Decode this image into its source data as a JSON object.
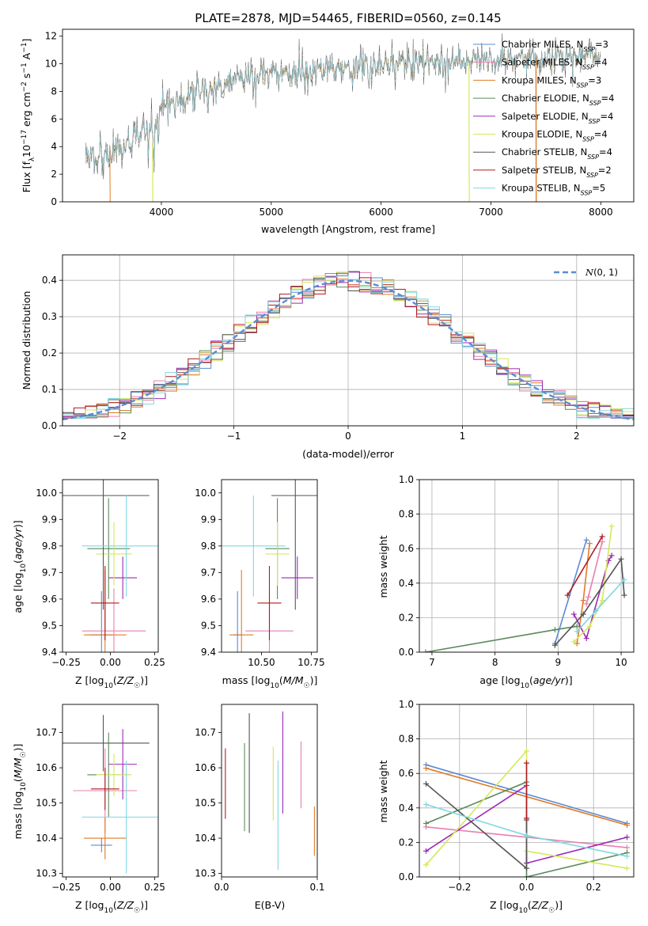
{
  "figure_title": "PLATE=2878, MJD=54465, FIBERID=0560, z=0.145",
  "colors": {
    "Chabrier MILES": "#5b8bd4",
    "Salpeter MILES": "#e87fb0",
    "Kroupa MILES": "#e07b28",
    "Chabrier ELODIE": "#5a8a5a",
    "Salpeter ELODIE": "#9b2bb5",
    "Kroupa ELODIE": "#d6e85a",
    "Chabrier STELIB": "#555555",
    "Salpeter STELIB": "#b01c1c",
    "Kroupa STELIB": "#7fd8e0"
  },
  "chart_data": [
    {
      "id": "spectrum",
      "type": "line",
      "xlabel": "wavelength [Angstrom, rest frame]",
      "ylabel": "Flux [f_λ 10^-17 erg cm^-2 s^-1 A^-1]",
      "xlim": [
        3100,
        8300
      ],
      "ylim": [
        0,
        12.5
      ],
      "xticks": [
        4000,
        5000,
        6000,
        7000,
        8000
      ],
      "yticks": [
        0,
        2,
        4,
        6,
        8,
        10,
        12
      ],
      "legend_position": "right",
      "legend": [
        {
          "model": "Chabrier MILES",
          "nssp": "3"
        },
        {
          "model": "Salpeter MILES",
          "nssp": "4"
        },
        {
          "model": "Kroupa MILES",
          "nssp": "3"
        },
        {
          "model": "Chabrier ELODIE",
          "nssp": "4"
        },
        {
          "model": "Salpeter ELODIE",
          "nssp": "4"
        },
        {
          "model": "Kroupa ELODIE",
          "nssp": "4"
        },
        {
          "model": "Chabrier STELIB",
          "nssp": "4"
        },
        {
          "model": "Salpeter STELIB",
          "nssp": "2"
        },
        {
          "model": "Kroupa STELIB",
          "nssp": "5"
        }
      ],
      "continuum": {
        "x": [
          3300,
          3500,
          3700,
          3900,
          4000,
          4300,
          4600,
          5000,
          5400,
          5800,
          6200,
          6600,
          7000,
          7400,
          7800,
          8000
        ],
        "y": [
          3.5,
          3.4,
          4.2,
          5.0,
          6.8,
          7.8,
          8.6,
          9.3,
          9.6,
          9.8,
          10.0,
          10.2,
          10.3,
          10.5,
          10.6,
          10.6
        ]
      }
    },
    {
      "id": "residuals",
      "type": "bar",
      "xlabel": "(data-model)/error",
      "ylabel": "Normed distribution",
      "xlim": [
        -2.5,
        2.5
      ],
      "ylim": [
        0,
        0.47
      ],
      "xticks": [
        -2,
        -1,
        0,
        1,
        2
      ],
      "yticks": [
        0.0,
        0.1,
        0.2,
        0.3,
        0.4
      ],
      "grid": true,
      "legend_position": "top-right",
      "reference_label": "N(0,1)"
    },
    {
      "id": "age_vs_Z",
      "type": "scatter",
      "xlabel": "Z [log10(Z/Z☉)]",
      "ylabel": "age [log10(age/yr)]",
      "xlim": [
        -0.27,
        0.27
      ],
      "ylim": [
        9.4,
        10.05
      ],
      "xticks": [
        -0.25,
        0.0,
        0.25
      ],
      "yticks": [
        9.4,
        9.5,
        9.6,
        9.7,
        9.8,
        9.9,
        10.0
      ],
      "points": [
        {
          "model": "Chabrier MILES",
          "x": -0.05,
          "xerr": 0.06,
          "y": 9.465,
          "yerr": 0.165
        },
        {
          "model": "Salpeter MILES",
          "x": 0.02,
          "xerr": 0.18,
          "y": 9.48,
          "yerr": 0.16
        },
        {
          "model": "Kroupa MILES",
          "x": -0.03,
          "xerr": 0.12,
          "y": 9.465,
          "yerr": 0.245
        },
        {
          "model": "Chabrier ELODIE",
          "x": -0.01,
          "xerr": 0.12,
          "y": 9.79,
          "yerr": 0.19
        },
        {
          "model": "Salpeter ELODIE",
          "x": 0.07,
          "xerr": 0.08,
          "y": 9.68,
          "yerr": 0.08
        },
        {
          "model": "Kroupa ELODIE",
          "x": 0.02,
          "xerr": 0.1,
          "y": 9.77,
          "yerr": 0.12
        },
        {
          "model": "Chabrier STELIB",
          "x": -0.04,
          "xerr": 0.26,
          "y": 9.99,
          "yerr": 0.43
        },
        {
          "model": "Salpeter STELIB",
          "x": -0.03,
          "xerr": 0.08,
          "y": 9.585,
          "yerr": 0.14
        },
        {
          "model": "Kroupa STELIB",
          "x": 0.09,
          "xerr": 0.25,
          "y": 9.8,
          "yerr": 0.19
        }
      ]
    },
    {
      "id": "age_vs_mass",
      "type": "scatter",
      "xlabel": "mass [log10(M/M☉)]",
      "ylabel": "",
      "xlim": [
        10.3,
        10.78
      ],
      "ylim": [
        9.4,
        10.05
      ],
      "xticks": [
        10.5,
        10.75
      ],
      "xticklabels": [
        "10.50",
        "10.75"
      ],
      "yticks": [
        9.4,
        9.5,
        9.6,
        9.7,
        9.8,
        9.9,
        10.0
      ],
      "points": [
        {
          "model": "Chabrier MILES",
          "x": 10.38,
          "xerr": 0.02,
          "y": 9.465,
          "yerr": 0.165
        },
        {
          "model": "Salpeter MILES",
          "x": 10.54,
          "xerr": 0.12,
          "y": 9.48,
          "yerr": 0.16
        },
        {
          "model": "Kroupa MILES",
          "x": 10.4,
          "xerr": 0.06,
          "y": 9.465,
          "yerr": 0.245
        },
        {
          "model": "Chabrier ELODIE",
          "x": 10.58,
          "xerr": 0.06,
          "y": 9.79,
          "yerr": 0.19
        },
        {
          "model": "Salpeter ELODIE",
          "x": 10.68,
          "xerr": 0.08,
          "y": 9.68,
          "yerr": 0.08
        },
        {
          "model": "Kroupa ELODIE",
          "x": 10.58,
          "xerr": 0.06,
          "y": 9.77,
          "yerr": 0.12
        },
        {
          "model": "Chabrier STELIB",
          "x": 10.67,
          "xerr": 0.12,
          "y": 9.99,
          "yerr": 0.43
        },
        {
          "model": "Salpeter STELIB",
          "x": 10.54,
          "xerr": 0.06,
          "y": 9.585,
          "yerr": 0.14
        },
        {
          "model": "Kroupa STELIB",
          "x": 10.46,
          "xerr": 0.16,
          "y": 9.8,
          "yerr": 0.19
        }
      ]
    },
    {
      "id": "mass_vs_Z",
      "type": "scatter",
      "xlabel": "Z [log10(Z/Z☉)]",
      "ylabel": "mass [log10(M/M☉)]",
      "xlim": [
        -0.27,
        0.27
      ],
      "ylim": [
        10.29,
        10.78
      ],
      "xticks": [
        -0.25,
        0.0,
        0.25
      ],
      "yticks": [
        10.3,
        10.4,
        10.5,
        10.6,
        10.7
      ],
      "points": [
        {
          "model": "Chabrier MILES",
          "x": -0.05,
          "xerr": 0.06,
          "y": 10.38,
          "yerr": 0.02
        },
        {
          "model": "Salpeter MILES",
          "x": -0.03,
          "xerr": 0.18,
          "y": 10.535,
          "yerr": 0.12
        },
        {
          "model": "Kroupa MILES",
          "x": -0.03,
          "xerr": 0.12,
          "y": 10.4,
          "yerr": 0.06
        },
        {
          "model": "Chabrier ELODIE",
          "x": -0.01,
          "xerr": 0.12,
          "y": 10.58,
          "yerr": 0.12
        },
        {
          "model": "Salpeter ELODIE",
          "x": 0.07,
          "xerr": 0.08,
          "y": 10.61,
          "yerr": 0.1
        },
        {
          "model": "Kroupa ELODIE",
          "x": 0.02,
          "xerr": 0.1,
          "y": 10.58,
          "yerr": 0.06
        },
        {
          "model": "Chabrier STELIB",
          "x": -0.04,
          "xerr": 0.26,
          "y": 10.67,
          "yerr": 0.08
        },
        {
          "model": "Salpeter STELIB",
          "x": -0.03,
          "xerr": 0.08,
          "y": 10.54,
          "yerr": 0.06
        },
        {
          "model": "Kroupa STELIB",
          "x": 0.09,
          "xerr": 0.25,
          "y": 10.46,
          "yerr": 0.16
        }
      ]
    },
    {
      "id": "mass_vs_ebv",
      "type": "scatter",
      "xlabel": "E(B-V)",
      "ylabel": "",
      "xlim": [
        0.0,
        0.1
      ],
      "ylim": [
        10.29,
        10.78
      ],
      "xticks": [
        0.0,
        0.1
      ],
      "xticklabels": [
        "0.0",
        "0.1"
      ],
      "yticks": [
        10.3,
        10.4,
        10.5,
        10.6,
        10.7
      ],
      "points": [
        {
          "model": "Salpeter STELIB",
          "x": 0.004,
          "y": 10.555,
          "yerr": 0.1
        },
        {
          "model": "Chabrier ELODIE",
          "x": 0.024,
          "y": 10.545,
          "yerr": 0.125
        },
        {
          "model": "Chabrier STELIB",
          "x": 0.029,
          "y": 10.585,
          "yerr": 0.17
        },
        {
          "model": "Kroupa ELODIE",
          "x": 0.054,
          "y": 10.555,
          "yerr": 0.105
        },
        {
          "model": "Kroupa STELIB",
          "x": 0.059,
          "y": 10.465,
          "yerr": 0.155
        },
        {
          "model": "Salpeter ELODIE",
          "x": 0.064,
          "y": 10.615,
          "yerr": 0.145
        },
        {
          "model": "Salpeter MILES",
          "x": 0.083,
          "y": 10.58,
          "yerr": 0.095
        },
        {
          "model": "Kroupa MILES",
          "x": 0.097,
          "y": 10.42,
          "yerr": 0.07
        }
      ]
    },
    {
      "id": "mass_weight_vs_age",
      "type": "line",
      "xlabel": "age [log10(age/yr)]",
      "ylabel": "mass weight",
      "xlim": [
        6.8,
        10.2
      ],
      "ylim": [
        0.0,
        1.0
      ],
      "xticks": [
        7,
        8,
        9,
        10
      ],
      "yticks": [
        0.0,
        0.2,
        0.4,
        0.6,
        0.8,
        1.0
      ],
      "grid": true,
      "series": [
        {
          "model": "Chabrier MILES",
          "x": [
            8.95,
            9.45
          ],
          "y": [
            0.05,
            0.65
          ]
        },
        {
          "model": "Salpeter MILES",
          "x": [
            9.45,
            9.48,
            9.7
          ],
          "y": [
            0.28,
            0.32,
            0.64
          ]
        },
        {
          "model": "Kroupa MILES",
          "x": [
            9.3,
            9.4,
            9.5
          ],
          "y": [
            0.05,
            0.3,
            0.63
          ]
        },
        {
          "model": "Chabrier ELODIE",
          "x": [
            6.9,
            8.95,
            9.3
          ],
          "y": [
            0.0,
            0.13,
            0.15
          ]
        },
        {
          "model": "Salpeter ELODIE",
          "x": [
            9.25,
            9.45,
            9.8,
            9.85
          ],
          "y": [
            0.22,
            0.08,
            0.53,
            0.56
          ]
        },
        {
          "model": "Kroupa ELODIE",
          "x": [
            9.25,
            9.5,
            9.7,
            9.85
          ],
          "y": [
            0.06,
            0.15,
            0.3,
            0.73
          ]
        },
        {
          "model": "Chabrier STELIB",
          "x": [
            8.95,
            9.4,
            10.0,
            10.05
          ],
          "y": [
            0.04,
            0.22,
            0.54,
            0.33
          ]
        },
        {
          "model": "Salpeter STELIB",
          "x": [
            9.15,
            9.7
          ],
          "y": [
            0.33,
            0.67
          ]
        },
        {
          "model": "Kroupa STELIB",
          "x": [
            9.3,
            9.6,
            10.05
          ],
          "y": [
            0.12,
            0.24,
            0.42
          ]
        }
      ]
    },
    {
      "id": "mass_weight_vs_Z",
      "type": "line",
      "xlabel": "Z [log10(Z/Z☉)]",
      "ylabel": "mass weight",
      "xlim": [
        -0.32,
        0.32
      ],
      "ylim": [
        0.0,
        1.0
      ],
      "xticks": [
        -0.2,
        0.0,
        0.2
      ],
      "yticks": [
        0.0,
        0.2,
        0.4,
        0.6,
        0.8,
        1.0
      ],
      "grid": true,
      "series": [
        {
          "model": "Chabrier MILES",
          "x": [
            -0.3,
            0.3
          ],
          "y": [
            0.65,
            0.31
          ]
        },
        {
          "model": "Salpeter MILES",
          "x": [
            -0.3,
            0.3
          ],
          "y": [
            0.29,
            0.17
          ]
        },
        {
          "model": "Kroupa MILES",
          "x": [
            -0.3,
            0.3
          ],
          "y": [
            0.63,
            0.3
          ]
        },
        {
          "model": "Chabrier ELODIE",
          "x": [
            -0.3,
            0.0,
            0.0,
            0.3
          ],
          "y": [
            0.31,
            0.55,
            0.0,
            0.14
          ]
        },
        {
          "model": "Salpeter ELODIE",
          "x": [
            -0.3,
            0.0,
            0.0,
            0.3
          ],
          "y": [
            0.15,
            0.53,
            0.08,
            0.23
          ]
        },
        {
          "model": "Kroupa ELODIE",
          "x": [
            -0.3,
            0.0,
            0.0,
            0.3
          ],
          "y": [
            0.07,
            0.73,
            0.15,
            0.05
          ]
        },
        {
          "model": "Chabrier STELIB",
          "x": [
            -0.3,
            0.0,
            0.0
          ],
          "y": [
            0.54,
            0.05,
            0.33
          ]
        },
        {
          "model": "Salpeter STELIB",
          "x": [
            0.0,
            0.0
          ],
          "y": [
            0.34,
            0.66
          ]
        },
        {
          "model": "Kroupa STELIB",
          "x": [
            -0.3,
            0.0,
            0.3
          ],
          "y": [
            0.42,
            0.24,
            0.12
          ]
        }
      ]
    }
  ]
}
